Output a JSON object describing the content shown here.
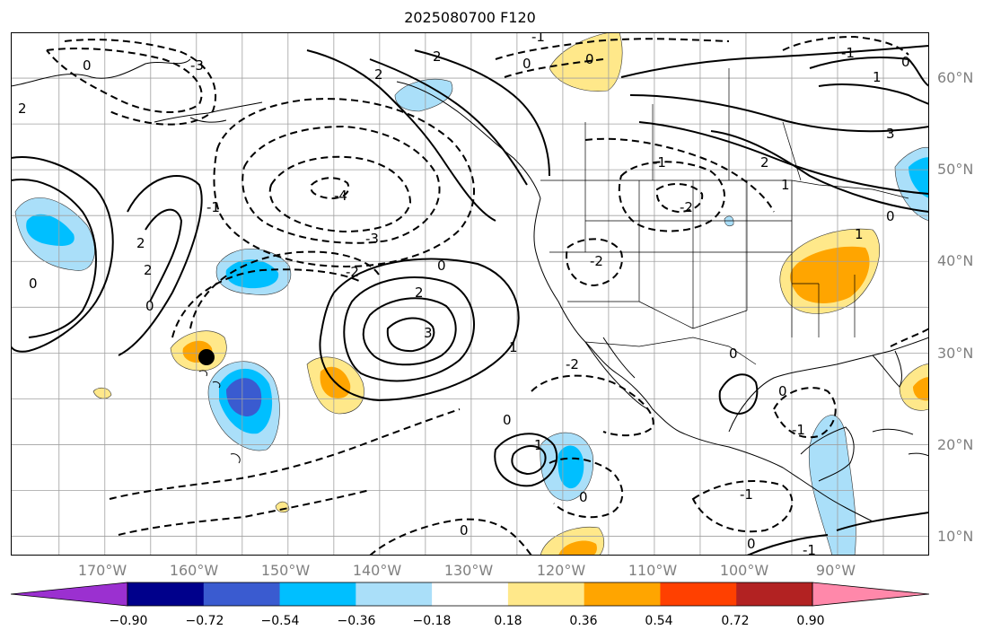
{
  "title": "2025080700 F120",
  "lat_labels": [
    "60°N",
    "50°N",
    "40°N",
    "30°N",
    "20°N",
    "10°N"
  ],
  "lon_labels": [
    "170°W",
    "160°W",
    "150°W",
    "140°W",
    "130°W",
    "120°W",
    "110°W",
    "100°W",
    "90°W"
  ],
  "contour_labels": [
    "-3",
    "-2",
    "-1",
    "0",
    "1",
    "2",
    "3",
    "-4"
  ],
  "colorbar": {
    "ticks": [
      "−0.90",
      "−0.72",
      "−0.54",
      "−0.36",
      "−0.18",
      "0.18",
      "0.36",
      "0.54",
      "0.72",
      "0.90"
    ],
    "colors": [
      "#9b30d0",
      "#00008b",
      "#3a5bd0",
      "#00bfff",
      "#aadff9",
      "#ffffff",
      "#ffe88a",
      "#ffa500",
      "#ff4000",
      "#b22222",
      "#ff88aa"
    ]
  },
  "marker": {
    "lat": 29.5,
    "lon": -159.0
  }
}
